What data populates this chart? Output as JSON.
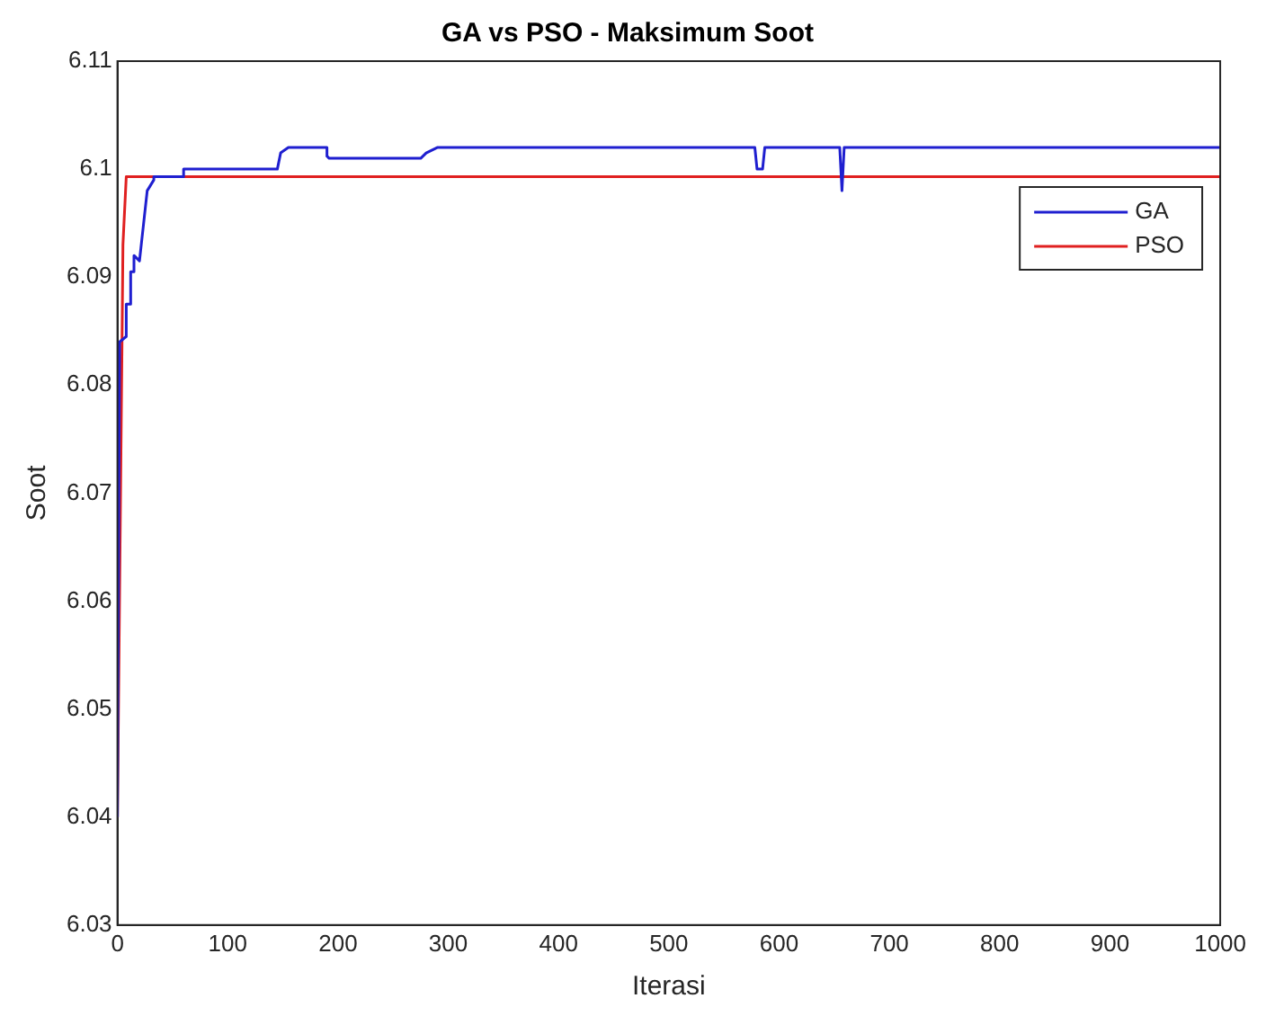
{
  "chart_data": {
    "type": "line",
    "title": "GA vs PSO - Maksimum Soot",
    "xlabel": "Iterasi",
    "ylabel": "Soot",
    "xlim": [
      0,
      1000
    ],
    "xticks": [
      0,
      100,
      200,
      300,
      400,
      500,
      600,
      700,
      800,
      900,
      1000
    ],
    "ylim": [
      6.03,
      6.11
    ],
    "yticks": [
      6.03,
      6.04,
      6.05,
      6.06,
      6.07,
      6.08,
      6.09,
      6.1,
      6.11
    ],
    "grid": false,
    "legend": "top right",
    "line_style": "solid",
    "marker": "none",
    "series": [
      {
        "name": "GA",
        "color": "#1f1fd0",
        "x": [
          0,
          2,
          8,
          8,
          12,
          12,
          15,
          15,
          20,
          20,
          27,
          33,
          33,
          60,
          60,
          145,
          148,
          155,
          190,
          190,
          192,
          275,
          280,
          290,
          578,
          580,
          585,
          587,
          655,
          657,
          657,
          659,
          1000
        ],
        "values": [
          6.04,
          6.084,
          6.0845,
          6.0875,
          6.0875,
          6.0905,
          6.0905,
          6.092,
          6.0915,
          6.0915,
          6.098,
          6.099,
          6.0993,
          6.0993,
          6.1,
          6.1,
          6.1015,
          6.102,
          6.102,
          6.1012,
          6.101,
          6.101,
          6.1015,
          6.102,
          6.102,
          6.1,
          6.1,
          6.102,
          6.102,
          6.098,
          6.098,
          6.102,
          6.102
        ]
      },
      {
        "name": "PSO",
        "color": "#e02020",
        "x": [
          0,
          5,
          8,
          1000
        ],
        "values": [
          6.04,
          6.093,
          6.0993,
          6.0993
        ]
      }
    ]
  }
}
